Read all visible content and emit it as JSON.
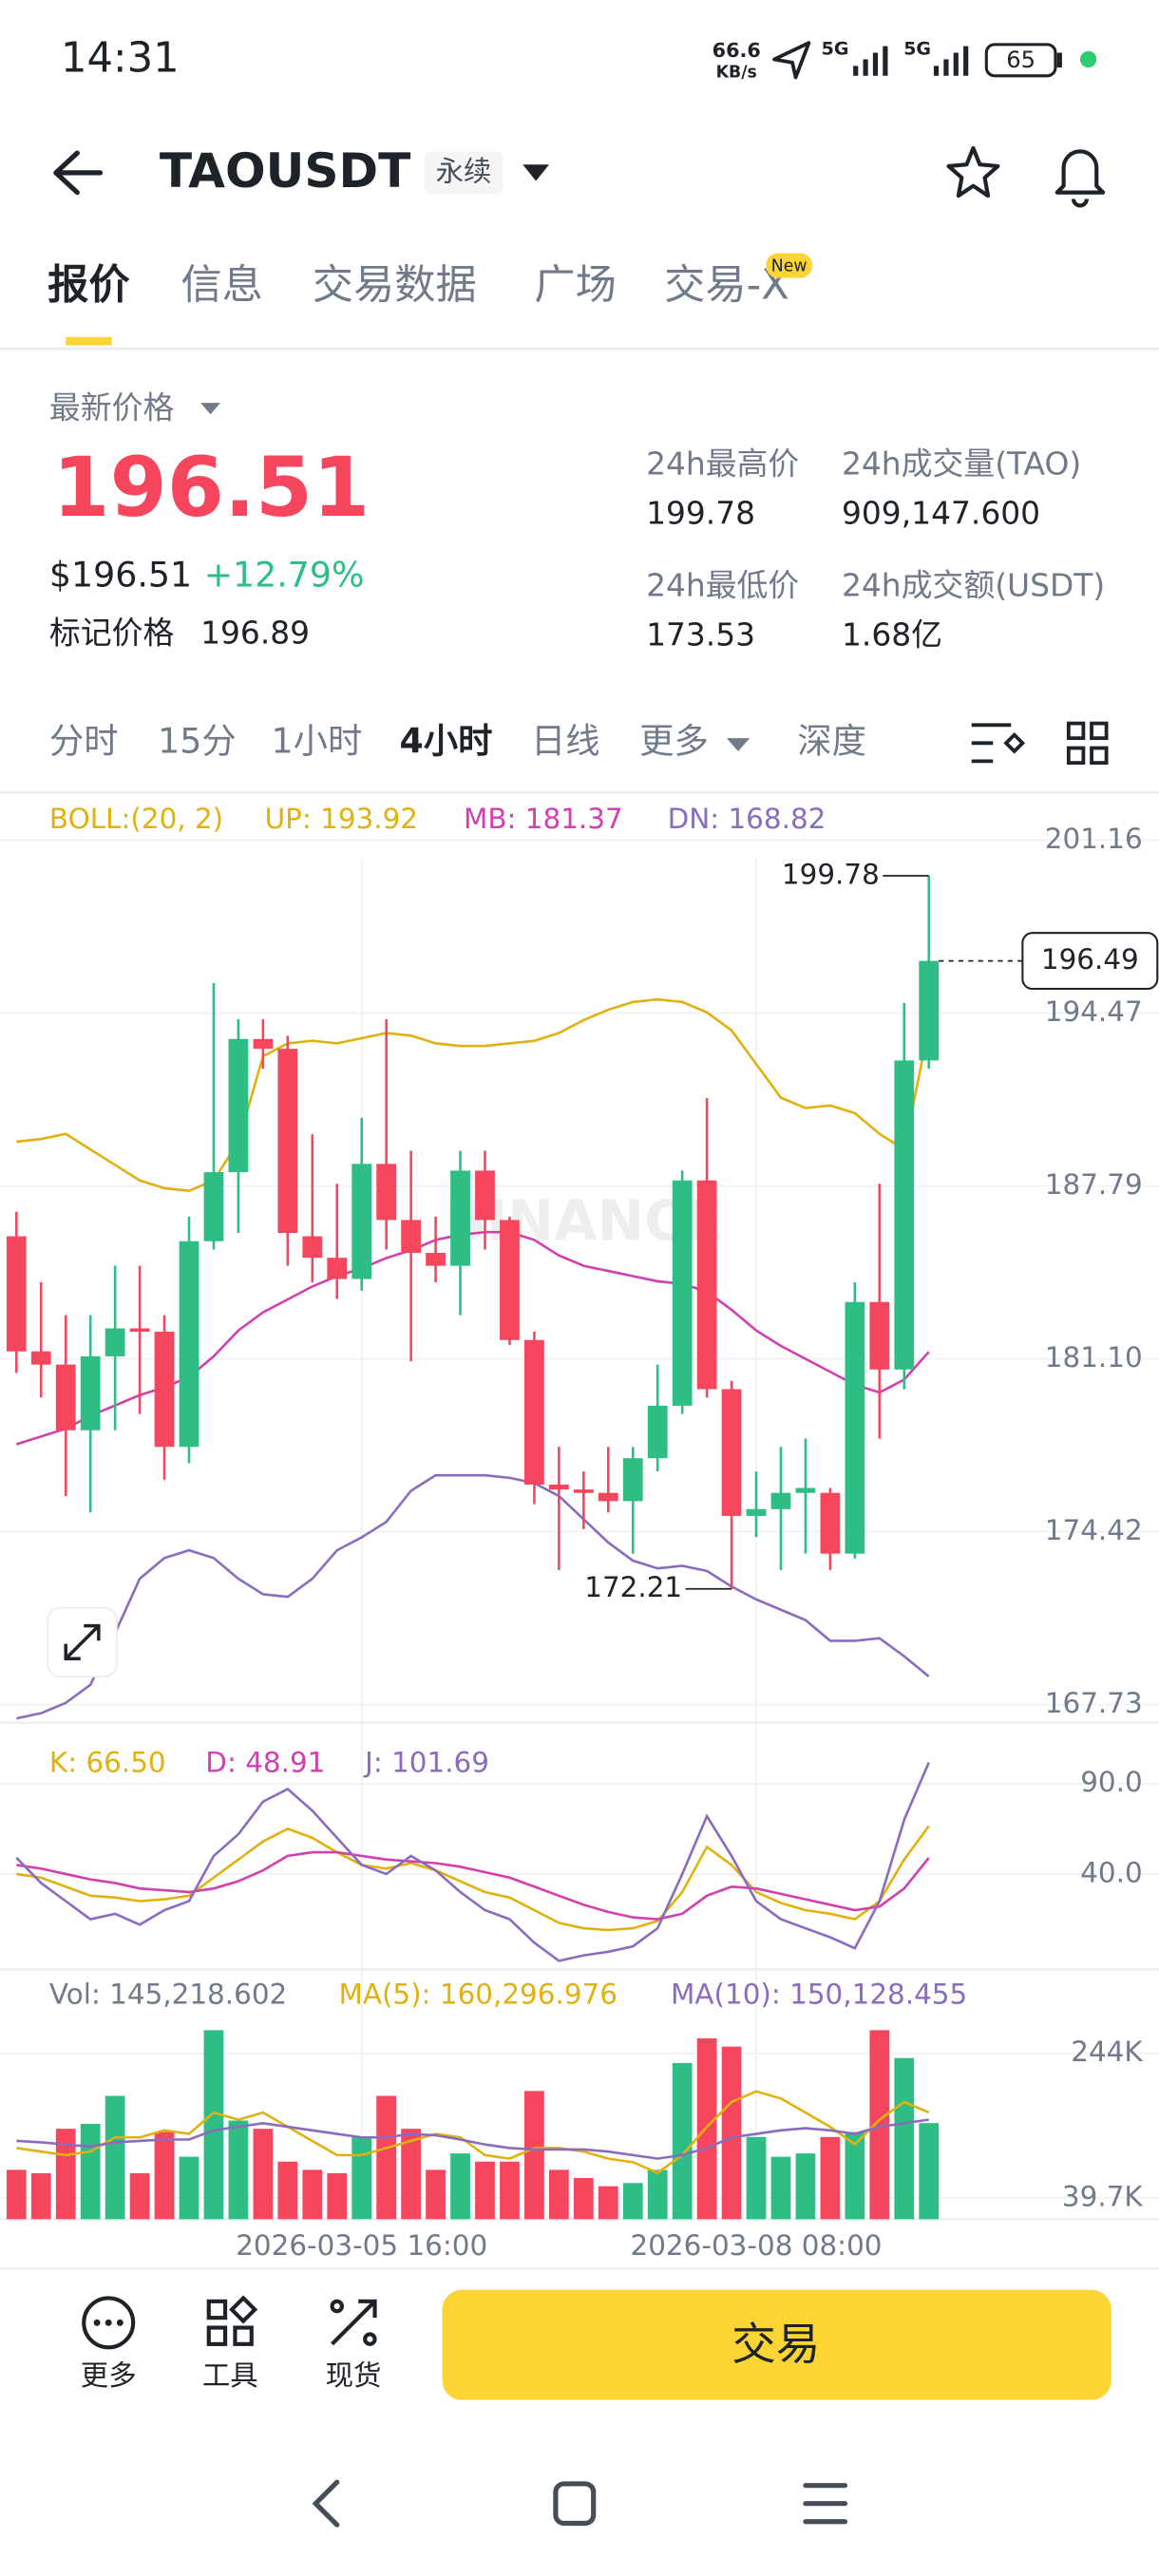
{
  "status_bar": {
    "time": "14:31",
    "speed": "66.6",
    "speed_unit": "KB/s",
    "network_1": "5G",
    "network_2": "5G",
    "battery": "65"
  },
  "header": {
    "symbol": "TAOUSDT",
    "badge": "永续"
  },
  "tabs": {
    "items": [
      "报价",
      "信息",
      "交易数据",
      "广场",
      "交易-X"
    ],
    "new_badge": "New"
  },
  "price": {
    "label": "最新价格",
    "last": "196.51",
    "usd": "$196.51",
    "change": "+12.79%",
    "mark_label": "标记价格",
    "mark": "196.89"
  },
  "stats": [
    {
      "label": "24h最高价",
      "value": "199.78"
    },
    {
      "label": "24h成交量(TAO)",
      "value": "909,147.600"
    },
    {
      "label": "24h最低价",
      "value": "173.53"
    },
    {
      "label": "24h成交额(USDT)",
      "value": "1.68亿"
    }
  ],
  "intervals": {
    "items": [
      "分时",
      "15分",
      "1小时",
      "4小时",
      "日线",
      "更多",
      "深度"
    ],
    "active": 3
  },
  "chart_data": [
    {
      "type": "candlestick",
      "indicator": "BOLL:(20, 2)",
      "watermark": "BINANCE",
      "categories": [
        null,
        null,
        null,
        null,
        null,
        null,
        null,
        null,
        null,
        null,
        null,
        null,
        null,
        null,
        "2026-03-05 16:00",
        null,
        null,
        null,
        null,
        null,
        null,
        null,
        null,
        null,
        null,
        null,
        null,
        null,
        null,
        null,
        "2026-03-08 08:00",
        null,
        null,
        null,
        null,
        null,
        null,
        null
      ],
      "open": [
        185.84,
        181.39,
        180.88,
        178.34,
        181.2,
        182.28,
        182.15,
        177.7,
        185.65,
        188.32,
        193.47,
        193.09,
        185.84,
        185.01,
        184.19,
        188.64,
        186.47,
        185.2,
        184.7,
        188.38,
        186.47,
        181.83,
        176.24,
        176.05,
        175.92,
        175.6,
        177.26,
        179.29,
        188.0,
        179.93,
        175.03,
        175.29,
        175.92,
        175.92,
        173.57,
        183.3,
        180.69,
        192.64
      ],
      "high": [
        186.79,
        184.06,
        182.79,
        182.79,
        184.7,
        184.7,
        182.79,
        186.6,
        195.63,
        194.23,
        194.23,
        193.59,
        189.78,
        187.87,
        190.42,
        194.23,
        189.15,
        186.6,
        189.15,
        189.15,
        186.6,
        182.15,
        177.7,
        176.75,
        177.7,
        177.7,
        180.88,
        188.38,
        191.18,
        180.25,
        176.75,
        177.7,
        178.02,
        176.11,
        184.06,
        187.87,
        194.87,
        199.78
      ],
      "low": [
        180.56,
        179.61,
        175.8,
        175.16,
        178.34,
        178.97,
        176.43,
        177.07,
        185.33,
        185.97,
        192.32,
        184.7,
        184.06,
        183.42,
        183.74,
        185.33,
        181.01,
        184.06,
        182.79,
        185.33,
        181.64,
        175.48,
        172.94,
        174.52,
        175.16,
        173.57,
        176.75,
        178.97,
        179.61,
        172.21,
        174.21,
        172.94,
        173.57,
        172.94,
        173.38,
        178.02,
        179.93,
        192.32
      ],
      "close": [
        181.39,
        180.88,
        178.34,
        181.2,
        182.28,
        182.15,
        177.7,
        185.65,
        188.32,
        193.47,
        193.09,
        185.97,
        185.01,
        184.19,
        188.64,
        186.47,
        185.2,
        184.7,
        188.38,
        186.47,
        181.83,
        176.24,
        176.05,
        175.92,
        175.6,
        177.26,
        179.29,
        188.0,
        179.93,
        175.03,
        175.29,
        175.92,
        176.11,
        173.57,
        183.3,
        180.69,
        192.64,
        196.49
      ],
      "up_color": "#2ebd85",
      "down_color": "#f6465d",
      "max_label": "199.78",
      "min_label": "172.21",
      "last_price": 196.49,
      "series": [
        {
          "name": "UP: 193.92",
          "color": "#e0b10f",
          "values": [
            189.5,
            189.6,
            189.8,
            189.2,
            188.6,
            188.0,
            187.7,
            187.6,
            188.0,
            189.5,
            192.8,
            193.3,
            193.4,
            193.3,
            193.5,
            193.7,
            193.6,
            193.3,
            193.2,
            193.2,
            193.3,
            193.4,
            193.7,
            194.2,
            194.6,
            194.9,
            195.0,
            194.9,
            194.5,
            193.8,
            192.5,
            191.2,
            190.8,
            190.9,
            190.6,
            189.8,
            189.2,
            193.92
          ]
        },
        {
          "name": "MB: 181.37",
          "color": "#d23fae",
          "values": [
            177.8,
            178.1,
            178.4,
            178.9,
            179.3,
            179.7,
            180.0,
            180.4,
            181.2,
            182.2,
            182.9,
            183.4,
            183.9,
            184.3,
            184.6,
            185.0,
            185.3,
            185.7,
            185.9,
            186.0,
            186.0,
            185.7,
            185.1,
            184.7,
            184.5,
            184.3,
            184.1,
            184.0,
            183.7,
            183.0,
            182.2,
            181.6,
            181.1,
            180.6,
            180.1,
            179.8,
            180.3,
            181.37
          ]
        },
        {
          "name": "DN: 168.82",
          "color": "#8a6bbd",
          "values": [
            167.2,
            167.4,
            167.8,
            168.5,
            170.5,
            172.6,
            173.4,
            173.7,
            173.4,
            172.6,
            172.0,
            171.9,
            172.6,
            173.7,
            174.2,
            174.8,
            176.0,
            176.6,
            176.6,
            176.6,
            176.5,
            176.3,
            175.8,
            174.9,
            174.0,
            173.3,
            173.0,
            173.1,
            172.9,
            172.3,
            171.8,
            171.4,
            171.0,
            170.2,
            170.2,
            170.3,
            169.6,
            168.82
          ]
        }
      ],
      "ylim": [
        167.73,
        201.16
      ],
      "yticks": [
        201.16,
        194.47,
        187.79,
        {
          "value": 181.1,
          "label": "181.10"
        },
        174.42,
        167.73
      ],
      "grid": true
    },
    {
      "type": "line",
      "series": [
        {
          "name": "K: 66.50",
          "color": "#e0b10f",
          "values": [
            40,
            38,
            33,
            28,
            27,
            25,
            26,
            28,
            38,
            48,
            58,
            65,
            60,
            52,
            45,
            43,
            46,
            42,
            36,
            30,
            27,
            20,
            13,
            10,
            9,
            10,
            14,
            30,
            55,
            45,
            30,
            24,
            20,
            18,
            15,
            25,
            48,
            66.5
          ]
        },
        {
          "name": "D: 48.91",
          "color": "#d23fae",
          "values": [
            45,
            43,
            40,
            37,
            35,
            32,
            31,
            30,
            32,
            36,
            42,
            50,
            52,
            52,
            50,
            48,
            47,
            46,
            44,
            41,
            38,
            33,
            28,
            23,
            19,
            16,
            15,
            18,
            28,
            33,
            32,
            29,
            26,
            23,
            20,
            22,
            32,
            48.91
          ]
        },
        {
          "name": "J: 101.69",
          "color": "#8a6bbd",
          "values": [
            49,
            35,
            25,
            15,
            18,
            12,
            20,
            25,
            50,
            62,
            80,
            87,
            75,
            60,
            45,
            40,
            50,
            42,
            30,
            20,
            15,
            2,
            -8,
            -5,
            -3,
            0,
            10,
            40,
            72,
            50,
            25,
            15,
            10,
            5,
            -1,
            25,
            70,
            101.69
          ]
        }
      ],
      "ylim": [
        -12.7,
        121.8
      ],
      "yticks": [
        {
          "value": 90,
          "label": "90.0"
        },
        {
          "value": 40,
          "label": "40.0"
        }
      ],
      "grid": true
    },
    {
      "type": "bar",
      "series": [
        {
          "name": "Vol: 145,218.602",
          "color": "#707a8a",
          "values": [
            79200,
            74500,
            137200,
            144200,
            183700,
            74500,
            132600,
            97700,
            276500,
            148800,
            137200,
            90800,
            79200,
            74500,
            125600,
            183700,
            137200,
            79200,
            102400,
            90800,
            90800,
            190600,
            79200,
            67600,
            56000,
            60600,
            79200,
            230100,
            264900,
            253300,
            125600,
            97700,
            102400,
            125600,
            132600,
            276500,
            237100,
            145218.602
          ]
        },
        {
          "name": "MA(5): 160,296.976",
          "color": "#e0b10f",
          "values": [
            110000,
            105000,
            100000,
            105000,
            125000,
            125000,
            135000,
            130000,
            160000,
            150000,
            160000,
            140000,
            120000,
            100000,
            100000,
            110000,
            120000,
            130000,
            125000,
            100000,
            95000,
            110000,
            110000,
            105000,
            95000,
            90000,
            75000,
            100000,
            140000,
            175000,
            190000,
            180000,
            160000,
            140000,
            115000,
            150000,
            175000,
            160296.976
          ]
        },
        {
          "name": "MA(10): 150,128.455",
          "color": "#8a6bbd",
          "values": [
            120000,
            118000,
            115000,
            112000,
            118000,
            120000,
            122000,
            122000,
            135000,
            140000,
            145000,
            140000,
            135000,
            130000,
            125000,
            125000,
            130000,
            128000,
            122000,
            115000,
            110000,
            108000,
            108000,
            108000,
            105000,
            100000,
            95000,
            100000,
            110000,
            125000,
            130000,
            135000,
            138000,
            135000,
            130000,
            140000,
            145000,
            150128.455
          ]
        }
      ],
      "ylim": [
        9500,
        334600
      ],
      "yticks": [
        {
          "value": 244000,
          "label": "244K"
        },
        {
          "value": 39700,
          "label": "39.7K"
        }
      ],
      "grid": true
    }
  ],
  "bottom_bar": {
    "buttons": [
      "更多",
      "工具",
      "现货"
    ],
    "trade": "交易"
  }
}
